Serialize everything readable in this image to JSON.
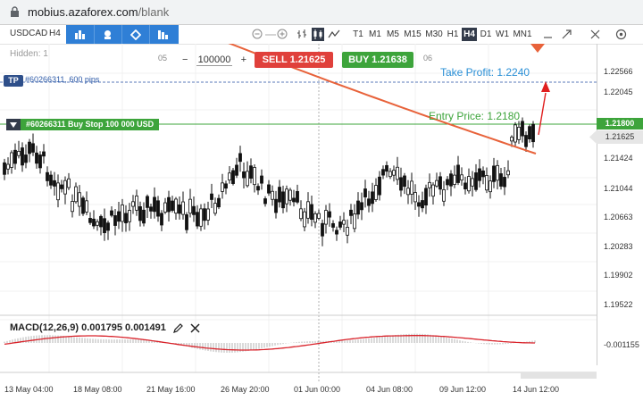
{
  "browser": {
    "url_host": "mobius.azaforex.com",
    "url_path": "/blank"
  },
  "toolbar": {
    "symbol": "USDCAD",
    "period": "H4",
    "tools": [
      "chart-type-icon",
      "indicators-icon",
      "drawing-icon",
      "templates-icon"
    ],
    "timeframes": [
      "T1",
      "M1",
      "M5",
      "M15",
      "M30",
      "H1",
      "H4",
      "D1",
      "W1",
      "MN1"
    ],
    "active_timeframe": "H4"
  },
  "chart": {
    "hidden_label": "Hidden: 1",
    "top_dates": [
      "05",
      "06"
    ],
    "quantity": "100000",
    "quantity_minus": "−",
    "quantity_plus": "+",
    "sell_label": "SELL",
    "sell_price": "1.21625",
    "buy_label": "BUY",
    "buy_price": "1.21638",
    "tp_tag": "TP",
    "tp_text": "#60266311, 600 pips",
    "take_profit_label": "Take Profit: 1.2240",
    "entry_label": "Entry Price: 1.2180",
    "order_tag": "#60266311 Buy Stop 100 000 USD"
  },
  "price_axis": {
    "labels": [
      "1.22566",
      "1.22045",
      "1.21424",
      "1.21044",
      "1.20663",
      "1.20283",
      "1.19902",
      "1.19522"
    ],
    "entry_box": "1.21800",
    "current_box": "1.21625",
    "macd_label": "-0.001155"
  },
  "macd": {
    "label": "MACD(12,26,9) 0.001795 0.001491"
  },
  "time_axis": {
    "labels": [
      "13 May 04:00",
      "18 May 08:00",
      "21 May 16:00",
      "26 May 20:00",
      "01 Jun 00:00",
      "04 Jun 08:00",
      "09 Jun 12:00",
      "14 Jun 12:00"
    ]
  },
  "colors": {
    "sell": "#e0403b",
    "buy": "#3da43b",
    "tool_group": "#2f7fd6",
    "moving_average": "#e8623a",
    "take_profit": "#2a8fd6",
    "entry_line": "#3da43b"
  }
}
